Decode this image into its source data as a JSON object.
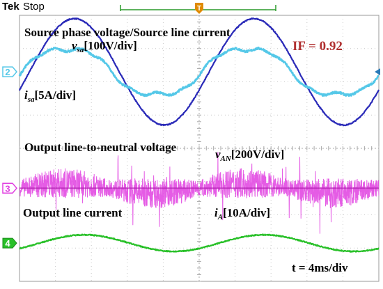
{
  "header": {
    "brand": "Tek",
    "status": "Stop"
  },
  "labels": {
    "source_title": "Source phase voltage/Source line current",
    "vsa_symbol": "v",
    "vsa_sub": "sa",
    "vsa_scale": "[100V/div]",
    "isa_symbol": "i",
    "isa_sub": "sa",
    "isa_scale": "[5A/div]",
    "if_value": "IF = 0.92",
    "output_voltage_title": "Output line-to-neutral voltage",
    "van_symbol": "v",
    "van_sub": "AN",
    "van_scale": "[200V/div]",
    "output_current_title": "Output line current",
    "ia_symbol": "i",
    "ia_sub": "A",
    "ia_scale": "[10A/div]",
    "time_scale": "t = 4ms/div"
  },
  "chart_data": {
    "type": "line",
    "time_per_div_ms": 4,
    "divisions_x": 10,
    "divisions_y": 8,
    "x_range_ms": [
      0,
      40
    ],
    "grid": true,
    "channels": [
      {
        "marker": "2",
        "name": "v_sa",
        "scale": "100V/div",
        "color": "#2a2ab8",
        "period_ms": 20,
        "amplitude_div": 1.6,
        "offset_div": 2.3,
        "phase_deg": -20,
        "waveform": "sine"
      },
      {
        "marker": "2",
        "name": "i_sa",
        "scale": "5A/div",
        "color": "#55c8e8",
        "period_ms": 20,
        "amplitude_div": 0.75,
        "offset_div": 2.3,
        "phase_deg": -5,
        "waveform": "distorted-sine"
      },
      {
        "marker": "3",
        "name": "v_AN",
        "scale": "200V/div",
        "color": "#e040e0",
        "period_ms": 20,
        "amplitude_div": 0.3,
        "offset_div": -1.2,
        "phase_deg": 0,
        "waveform": "pwm-noise"
      },
      {
        "marker": "4",
        "name": "i_A",
        "scale": "10A/div",
        "color": "#28c028",
        "period_ms": 20,
        "amplitude_div": 0.25,
        "offset_div": -2.85,
        "phase_deg": -40,
        "waveform": "sine"
      }
    ],
    "marker_colors": {
      "2": "#55c8e8",
      "3": "#e040e0",
      "4": "#28c028"
    },
    "trigger_color": "#e08a00"
  }
}
